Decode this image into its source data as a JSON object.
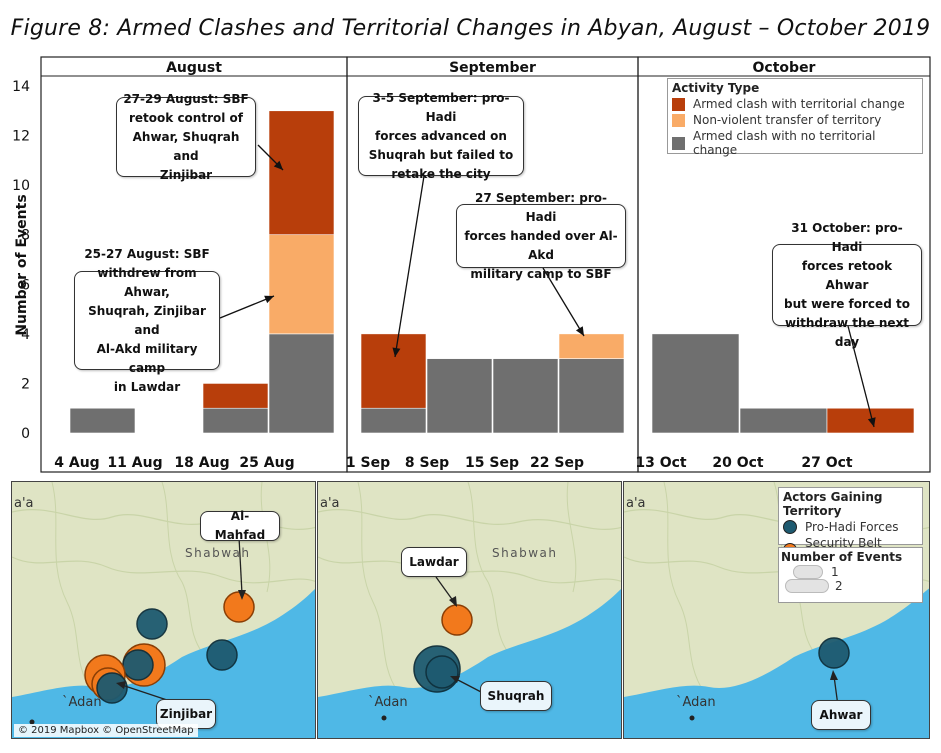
{
  "title": "Figure 8: Armed Clashes and Territorial Changes in Abyan, August – October 2019",
  "colors": {
    "armed_clash_territorial_change": "#b83e0b",
    "non_violent_transfer": "#f9ab67",
    "armed_clash_no_change": "#6f6f6f",
    "pro_hadi": "#1e5a70",
    "security_belt": "#f2791c",
    "sea": "#4fb8e6",
    "land": "#dfe4c4"
  },
  "chart_data": {
    "type": "bar",
    "stacked": true,
    "ylabel": "Number of Events",
    "ylim": [
      0,
      14
    ],
    "yticks": [
      0,
      2,
      4,
      6,
      8,
      10,
      12,
      14
    ],
    "legend": {
      "title": "Activity Type",
      "placement": "top-right",
      "entries": [
        "Armed clash with territorial change",
        "Non-violent transfer of territory",
        "Armed clash with no territorial change"
      ]
    },
    "panels": [
      {
        "name": "August",
        "tick_labels": [
          "4 Aug",
          "11 Aug",
          "18 Aug",
          "25 Aug"
        ],
        "weeks": [
          "4 Aug",
          "11 Aug",
          "18 Aug",
          "25 Aug"
        ],
        "series": [
          {
            "name": "Armed clash with no territorial change",
            "values": [
              1,
              0,
              1,
              4
            ]
          },
          {
            "name": "Non-violent transfer of territory",
            "values": [
              0,
              0,
              0,
              4
            ]
          },
          {
            "name": "Armed clash with territorial change",
            "values": [
              0,
              0,
              1,
              5
            ]
          }
        ]
      },
      {
        "name": "September",
        "tick_labels": [
          "1 Sep",
          "8 Sep",
          "15 Sep",
          "22 Sep"
        ],
        "weeks": [
          "1 Sep",
          "8 Sep",
          "15 Sep",
          "22 Sep"
        ],
        "series": [
          {
            "name": "Armed clash with no territorial change",
            "values": [
              1,
              3,
              3,
              3
            ]
          },
          {
            "name": "Non-violent transfer of territory",
            "values": [
              0,
              0,
              0,
              1
            ]
          },
          {
            "name": "Armed clash with territorial change",
            "values": [
              3,
              0,
              0,
              0
            ]
          }
        ]
      },
      {
        "name": "October",
        "tick_labels": [
          "13 Oct",
          "20 Oct",
          "27 Oct"
        ],
        "weeks": [
          "13 Oct",
          "20 Oct",
          "27 Oct"
        ],
        "series": [
          {
            "name": "Armed clash with no territorial change",
            "values": [
              4,
              1,
              0
            ]
          },
          {
            "name": "Non-violent transfer of territory",
            "values": [
              0,
              0,
              0
            ]
          },
          {
            "name": "Armed clash with territorial change",
            "values": [
              0,
              0,
              1
            ]
          }
        ]
      }
    ],
    "annotations": [
      {
        "panel": 0,
        "text_lines": [
          "27-29 August: SBF",
          "retook control of",
          "Ahwar, Shuqrah and",
          "Zinjibar"
        ]
      },
      {
        "panel": 0,
        "text_lines": [
          "25-27 August: SBF",
          "withdrew from Ahwar,",
          "Shuqrah, Zinjibar and",
          "Al-Akd military camp",
          "in Lawdar"
        ]
      },
      {
        "panel": 1,
        "text_lines": [
          "3-5 September: pro-Hadi",
          "forces advanced on",
          "Shuqrah but failed to",
          "retake the city"
        ]
      },
      {
        "panel": 1,
        "text_lines": [
          "27 September: pro-Hadi",
          "forces handed over Al-Akd",
          "military camp to SBF"
        ]
      },
      {
        "panel": 2,
        "text_lines": [
          "31 October: pro-Hadi",
          "forces retook Ahwar",
          "but were forced to",
          "withdraw the next day"
        ]
      }
    ]
  },
  "maps": {
    "attribution": "© 2019 Mapbox © OpenStreetMap",
    "region_label": "Shabwah",
    "city_label": "`Adan",
    "edge_label": "a'a",
    "legend_actors": {
      "title": "Actors Gaining Territory",
      "entries": [
        "Pro-Hadi Forces",
        "Security Belt Forces"
      ]
    },
    "legend_size": {
      "title": "Number of Events",
      "entries": [
        "1",
        "2"
      ]
    },
    "panels": [
      {
        "callouts": [
          "Al-Mahfad",
          "Zinjibar"
        ]
      },
      {
        "callouts": [
          "Lawdar",
          "Shuqrah"
        ]
      },
      {
        "callouts": [
          "Ahwar"
        ]
      }
    ]
  }
}
